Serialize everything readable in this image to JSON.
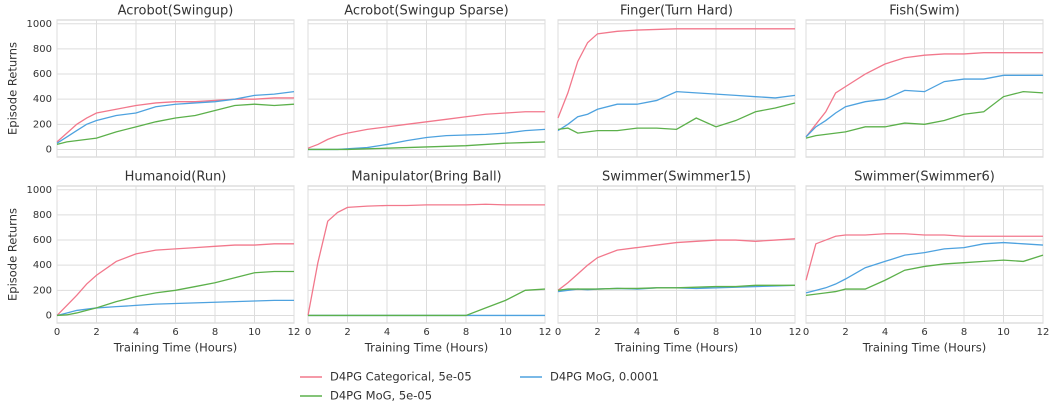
{
  "legend": [
    {
      "name": "D4PG Categorical, 5e-05",
      "color": "#f2788c"
    },
    {
      "name": "D4PG MoG, 0.0001",
      "color": "#4ea2df"
    },
    {
      "name": "D4PG MoG, 5e-05",
      "color": "#5cb04b"
    }
  ],
  "chart_data": [
    {
      "type": "line",
      "title": "Acrobot(Swingup)",
      "ylabel": "Episode Returns",
      "x": [
        0,
        0.5,
        1,
        1.5,
        2,
        3,
        4,
        5,
        6,
        7,
        8,
        9,
        10,
        11,
        12
      ],
      "xlim": [
        0,
        12
      ],
      "xticks": [
        0,
        2,
        4,
        6,
        8,
        10,
        12
      ],
      "ylim": [
        -60,
        1030
      ],
      "yticks": [
        0,
        200,
        400,
        600,
        800,
        1000
      ],
      "grid": true,
      "series": [
        {
          "values": [
            60,
            130,
            200,
            250,
            290,
            320,
            350,
            370,
            380,
            380,
            390,
            400,
            400,
            410,
            410
          ]
        },
        {
          "values": [
            50,
            100,
            150,
            200,
            230,
            270,
            290,
            340,
            360,
            370,
            380,
            400,
            430,
            440,
            460
          ]
        },
        {
          "values": [
            40,
            60,
            70,
            80,
            90,
            140,
            180,
            220,
            250,
            270,
            310,
            350,
            360,
            350,
            360
          ]
        }
      ]
    },
    {
      "type": "line",
      "title": "Acrobot(Swingup Sparse)",
      "x": [
        0,
        0.5,
        1,
        1.5,
        2,
        3,
        4,
        5,
        6,
        7,
        8,
        9,
        10,
        11,
        12
      ],
      "xlim": [
        0,
        12
      ],
      "xticks": [
        0,
        2,
        4,
        6,
        8,
        10,
        12
      ],
      "ylim": [
        -60,
        1030
      ],
      "yticks": [
        0,
        200,
        400,
        600,
        800,
        1000
      ],
      "grid": true,
      "series": [
        {
          "values": [
            10,
            40,
            80,
            110,
            130,
            160,
            180,
            200,
            220,
            240,
            260,
            280,
            290,
            300,
            300
          ]
        },
        {
          "values": [
            0,
            0,
            0,
            0,
            5,
            15,
            40,
            70,
            95,
            110,
            115,
            120,
            130,
            150,
            160
          ]
        },
        {
          "values": [
            0,
            0,
            0,
            0,
            0,
            5,
            10,
            15,
            20,
            25,
            30,
            40,
            50,
            55,
            60
          ]
        }
      ]
    },
    {
      "type": "line",
      "title": "Finger(Turn Hard)",
      "x": [
        0,
        0.5,
        1,
        1.5,
        2,
        3,
        4,
        5,
        6,
        7,
        8,
        9,
        10,
        11,
        12
      ],
      "xlim": [
        0,
        12
      ],
      "xticks": [
        0,
        2,
        4,
        6,
        8,
        10,
        12
      ],
      "ylim": [
        -60,
        1030
      ],
      "yticks": [
        0,
        200,
        400,
        600,
        800,
        1000
      ],
      "grid": true,
      "series": [
        {
          "values": [
            250,
            450,
            700,
            850,
            920,
            940,
            950,
            955,
            960,
            960,
            960,
            960,
            960,
            960,
            960
          ]
        },
        {
          "values": [
            150,
            200,
            260,
            280,
            320,
            360,
            360,
            390,
            460,
            450,
            440,
            430,
            420,
            410,
            430
          ]
        },
        {
          "values": [
            160,
            170,
            130,
            140,
            150,
            150,
            170,
            170,
            160,
            250,
            180,
            230,
            300,
            330,
            370
          ]
        }
      ]
    },
    {
      "type": "line",
      "title": "Fish(Swim)",
      "x": [
        0,
        0.5,
        1,
        1.5,
        2,
        3,
        4,
        5,
        6,
        7,
        8,
        9,
        10,
        11,
        12
      ],
      "xlim": [
        0,
        12
      ],
      "xticks": [
        0,
        2,
        4,
        6,
        8,
        10,
        12
      ],
      "ylim": [
        -60,
        1030
      ],
      "yticks": [
        0,
        200,
        400,
        600,
        800,
        1000
      ],
      "grid": true,
      "series": [
        {
          "values": [
            100,
            200,
            300,
            450,
            500,
            600,
            680,
            730,
            750,
            760,
            760,
            770,
            770,
            770,
            770
          ]
        },
        {
          "values": [
            100,
            180,
            230,
            290,
            340,
            380,
            400,
            470,
            460,
            540,
            560,
            560,
            590,
            590,
            590
          ]
        },
        {
          "values": [
            90,
            110,
            120,
            130,
            140,
            180,
            180,
            210,
            200,
            230,
            280,
            300,
            420,
            460,
            450
          ]
        }
      ]
    },
    {
      "type": "line",
      "title": "Humanoid(Run)",
      "ylabel": "Episode Returns",
      "xlabel": "Training Time (Hours)",
      "x": [
        0,
        0.5,
        1,
        1.5,
        2,
        3,
        4,
        5,
        6,
        7,
        8,
        9,
        10,
        11,
        12
      ],
      "xlim": [
        0,
        12
      ],
      "xticks": [
        0,
        2,
        4,
        6,
        8,
        10,
        12
      ],
      "ylim": [
        -60,
        1030
      ],
      "yticks": [
        0,
        200,
        400,
        600,
        800,
        1000
      ],
      "grid": true,
      "series": [
        {
          "values": [
            0,
            80,
            160,
            250,
            320,
            430,
            490,
            520,
            530,
            540,
            550,
            560,
            560,
            570,
            570
          ]
        },
        {
          "values": [
            0,
            20,
            40,
            50,
            60,
            70,
            80,
            90,
            95,
            100,
            105,
            110,
            115,
            120,
            120
          ]
        },
        {
          "values": [
            0,
            5,
            20,
            40,
            60,
            110,
            150,
            180,
            200,
            230,
            260,
            300,
            340,
            350,
            350
          ]
        }
      ]
    },
    {
      "type": "line",
      "title": "Manipulator(Bring Ball)",
      "xlabel": "Training Time (Hours)",
      "x": [
        0,
        0.5,
        1,
        1.5,
        2,
        3,
        4,
        5,
        6,
        7,
        8,
        9,
        10,
        11,
        12
      ],
      "xlim": [
        0,
        12
      ],
      "xticks": [
        0,
        2,
        4,
        6,
        8,
        10,
        12
      ],
      "ylim": [
        -60,
        1030
      ],
      "yticks": [
        0,
        200,
        400,
        600,
        800,
        1000
      ],
      "grid": true,
      "series": [
        {
          "values": [
            0,
            420,
            750,
            820,
            860,
            870,
            875,
            875,
            880,
            880,
            880,
            885,
            880,
            880,
            880
          ]
        },
        {
          "values": [
            0,
            0,
            0,
            0,
            0,
            0,
            0,
            0,
            0,
            0,
            0,
            0,
            0,
            0,
            0
          ]
        },
        {
          "values": [
            0,
            0,
            0,
            0,
            0,
            0,
            0,
            0,
            0,
            0,
            0,
            60,
            120,
            200,
            210
          ]
        }
      ]
    },
    {
      "type": "line",
      "title": "Swimmer(Swimmer15)",
      "xlabel": "Training Time (Hours)",
      "x": [
        0,
        0.5,
        1,
        1.5,
        2,
        3,
        4,
        5,
        6,
        7,
        8,
        9,
        10,
        11,
        12
      ],
      "xlim": [
        0,
        12
      ],
      "xticks": [
        0,
        2,
        4,
        6,
        8,
        10,
        12
      ],
      "ylim": [
        -60,
        1030
      ],
      "yticks": [
        0,
        200,
        400,
        600,
        800,
        1000
      ],
      "grid": true,
      "series": [
        {
          "values": [
            200,
            260,
            330,
            400,
            460,
            520,
            540,
            560,
            580,
            590,
            600,
            600,
            590,
            600,
            610
          ]
        },
        {
          "values": [
            190,
            200,
            210,
            205,
            210,
            215,
            210,
            220,
            220,
            215,
            220,
            225,
            230,
            235,
            240
          ]
        },
        {
          "values": [
            200,
            210,
            210,
            210,
            210,
            215,
            215,
            220,
            220,
            225,
            230,
            230,
            240,
            240,
            240
          ]
        }
      ]
    },
    {
      "type": "line",
      "title": "Swimmer(Swimmer6)",
      "xlabel": "Training Time (Hours)",
      "x": [
        0,
        0.5,
        1,
        1.5,
        2,
        3,
        4,
        5,
        6,
        7,
        8,
        9,
        10,
        11,
        12
      ],
      "xlim": [
        0,
        12
      ],
      "xticks": [
        0,
        2,
        4,
        6,
        8,
        10,
        12
      ],
      "ylim": [
        -60,
        1030
      ],
      "yticks": [
        0,
        200,
        400,
        600,
        800,
        1000
      ],
      "grid": true,
      "series": [
        {
          "values": [
            280,
            570,
            600,
            630,
            640,
            640,
            650,
            650,
            640,
            640,
            630,
            630,
            630,
            630,
            630
          ]
        },
        {
          "values": [
            180,
            200,
            220,
            250,
            290,
            380,
            430,
            480,
            500,
            530,
            540,
            570,
            580,
            570,
            560
          ]
        },
        {
          "values": [
            160,
            170,
            180,
            190,
            210,
            210,
            280,
            360,
            390,
            410,
            420,
            430,
            440,
            430,
            480
          ]
        }
      ]
    }
  ]
}
